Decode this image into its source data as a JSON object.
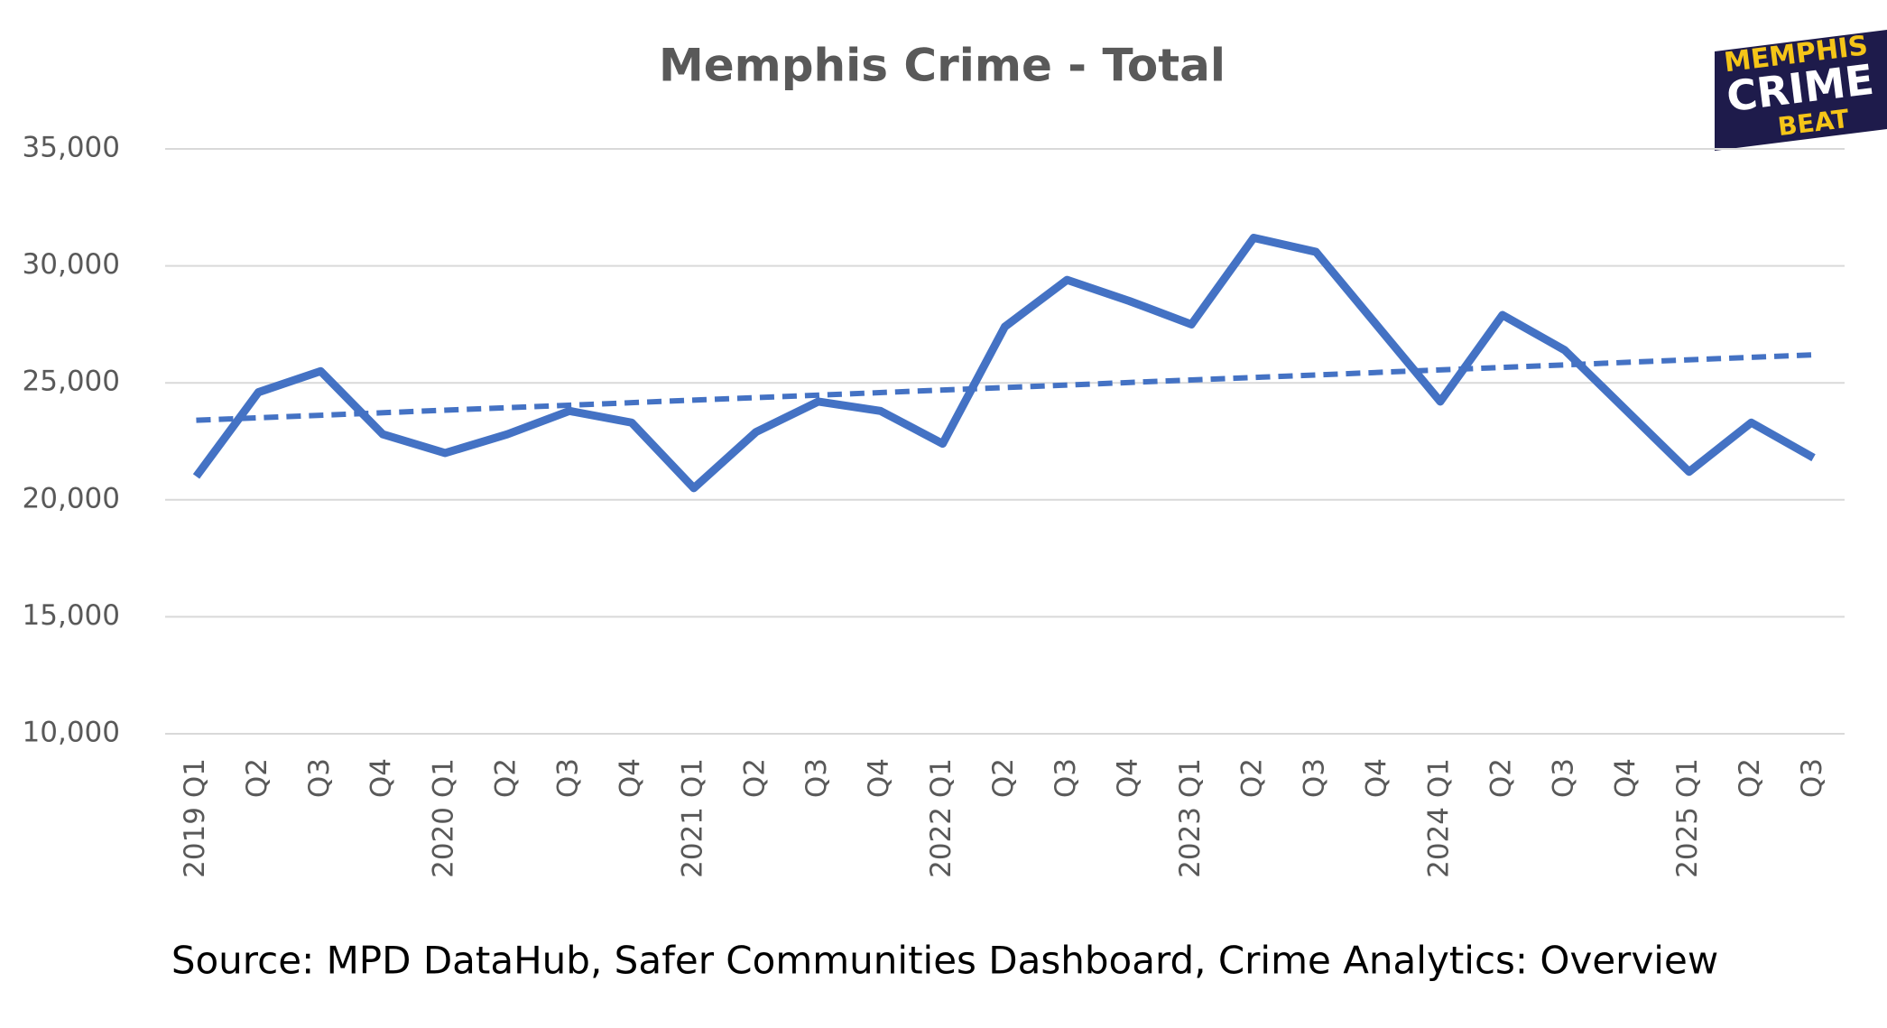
{
  "chart_data": {
    "type": "line",
    "title": "Memphis Crime - Total",
    "source": "Source: MPD DataHub, Safer Communities Dashboard,  Crime Analytics: Overview",
    "logo": [
      "MEMPHIS",
      "CRIME",
      "BEAT"
    ],
    "categories": [
      "2019 Q1",
      "Q2",
      "Q3",
      "Q4",
      "2020 Q1",
      "Q2",
      "Q3",
      "Q4",
      "2021 Q1",
      "Q2",
      "Q3",
      "Q4",
      "2022 Q1",
      "Q2",
      "Q3",
      "Q4",
      "2023 Q1",
      "Q2",
      "Q3",
      "Q4",
      "2024 Q1",
      "Q2",
      "Q3",
      "Q4",
      "2025 Q1",
      "Q2",
      "Q3"
    ],
    "series": [
      {
        "color": "#4472c4",
        "values": [
          21000,
          24600,
          25500,
          22800,
          22000,
          22800,
          23800,
          23300,
          20500,
          22900,
          24200,
          23800,
          22400,
          27400,
          29400,
          28500,
          27500,
          31200,
          30600,
          27400,
          24200,
          27900,
          26400,
          23800,
          21200,
          23300,
          21800
        ]
      }
    ],
    "trendline": {
      "color": "#4472c4",
      "dashed": true,
      "values": [
        23400,
        26200
      ]
    },
    "ylim": [
      10000,
      35000
    ],
    "yticks": [
      {
        "value": 10000,
        "label": "10,000"
      },
      {
        "value": 15000,
        "label": "15,000"
      },
      {
        "value": 20000,
        "label": "20,000"
      },
      {
        "value": 25000,
        "label": "25,000"
      },
      {
        "value": 30000,
        "label": "30,000"
      },
      {
        "value": 35000,
        "label": "35,000"
      }
    ],
    "grid": true
  }
}
